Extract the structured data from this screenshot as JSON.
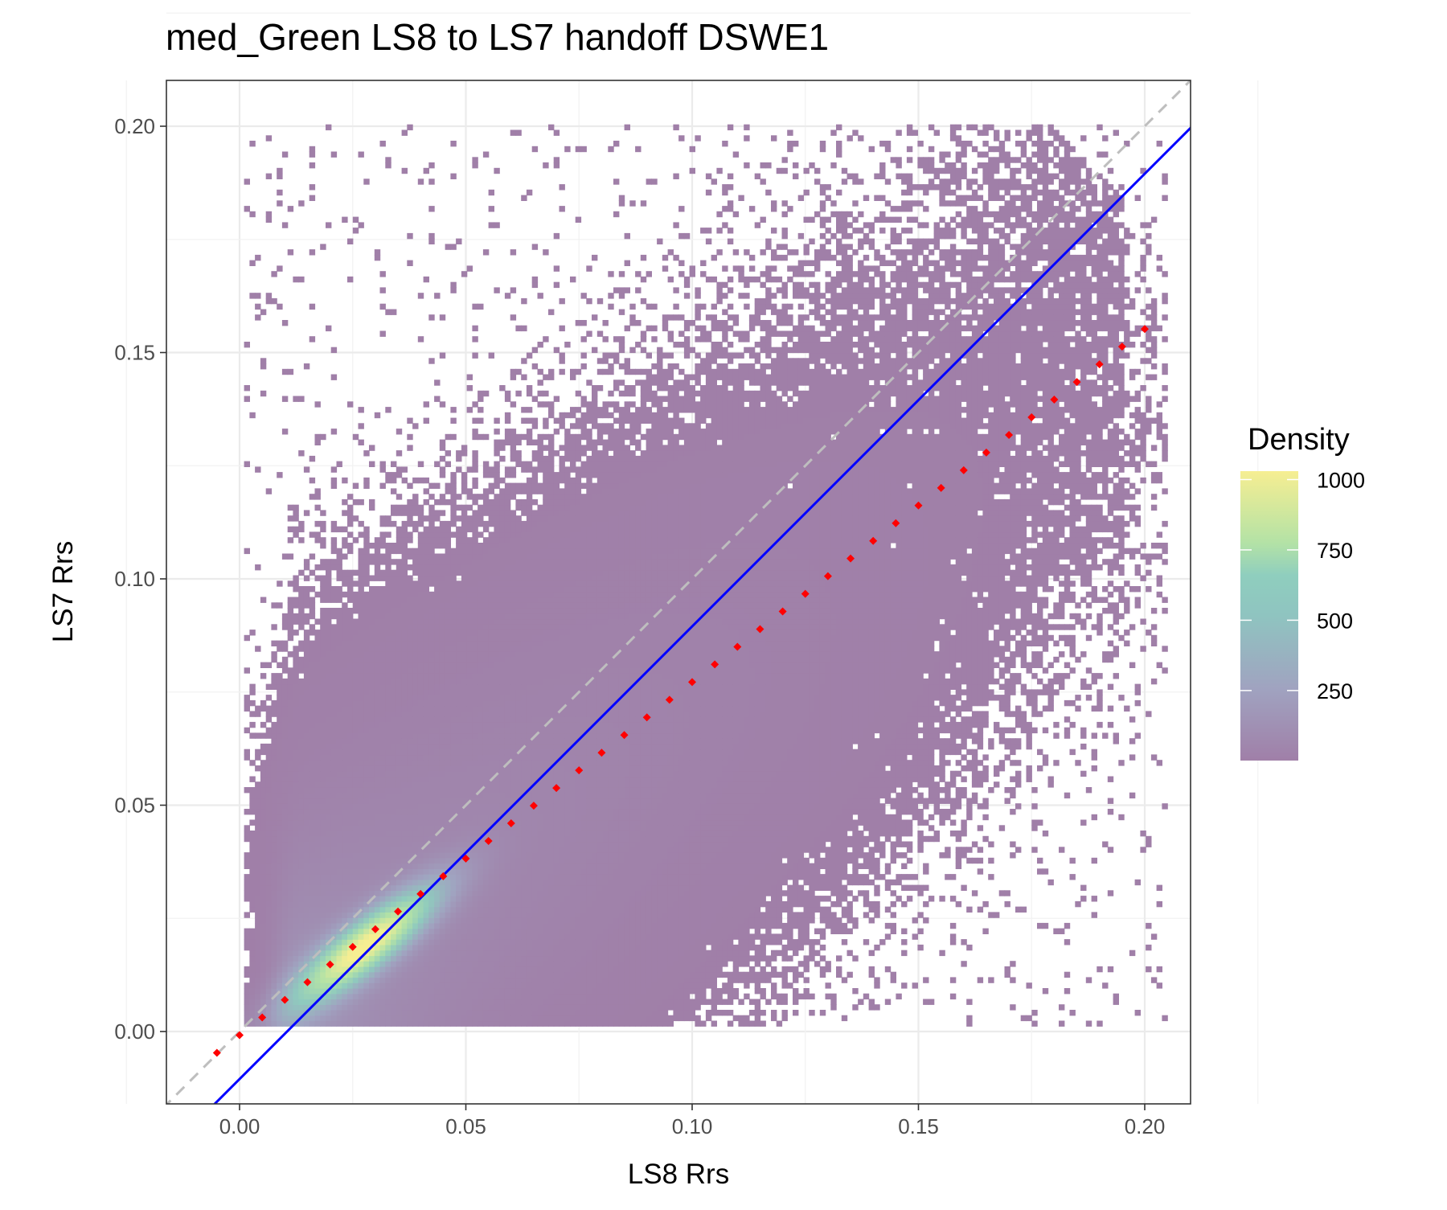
{
  "chart_data": {
    "type": "heatmap",
    "title": "med_Green LS8 to LS7 handoff DSWE1",
    "xlabel": "LS8 Rrs",
    "ylabel": "LS7 Rrs",
    "xlim": [
      -0.016,
      0.21
    ],
    "ylim": [
      -0.016,
      0.21
    ],
    "xticks": [
      0.0,
      0.05,
      0.1,
      0.15,
      0.2
    ],
    "xtick_labels": [
      "0.00",
      "0.05",
      "0.10",
      "0.15",
      "0.20"
    ],
    "yticks": [
      0.0,
      0.05,
      0.1,
      0.15,
      0.2
    ],
    "ytick_labels": [
      "0.00",
      "0.05",
      "0.10",
      "0.15",
      "0.20"
    ],
    "grid": true,
    "density_legend": {
      "title": "Density",
      "ticks": [
        1000,
        750,
        500,
        250
      ],
      "tick_labels": [
        "1000",
        "750",
        "500",
        "250"
      ],
      "range": [
        1,
        1030
      ],
      "placement": "right",
      "colors": [
        "#a07fa8",
        "#a0a3c0",
        "#8fcabe",
        "#b3e2a6",
        "#f6ee92"
      ]
    },
    "density_peak": {
      "x": 0.028,
      "y": 0.019,
      "value": 1000
    },
    "reference_line": {
      "name": "1:1",
      "slope": 1,
      "intercept": 0,
      "color": "#bebebe",
      "style": "dashed"
    },
    "fit_line": {
      "name": "regression",
      "slope": 1.0,
      "intercept": -0.0105,
      "color": "#0000ff"
    },
    "handoff_points": {
      "color": "#ff0000",
      "x": [
        -0.005,
        0,
        0.005,
        0.01,
        0.015,
        0.02,
        0.025,
        0.03,
        0.035,
        0.04,
        0.045,
        0.05,
        0.055,
        0.06,
        0.065,
        0.07,
        0.075,
        0.08,
        0.085,
        0.09,
        0.095,
        0.1,
        0.105,
        0.11,
        0.115,
        0.12,
        0.125,
        0.13,
        0.135,
        0.14,
        0.145,
        0.15,
        0.155,
        0.16,
        0.165,
        0.17,
        0.175,
        0.18,
        0.185,
        0.19,
        0.195,
        0.2
      ],
      "y": [
        -0.0047,
        -0.0008,
        0.0031,
        0.007,
        0.0109,
        0.0148,
        0.0187,
        0.0226,
        0.0265,
        0.0304,
        0.0343,
        0.0382,
        0.0421,
        0.046,
        0.0499,
        0.0538,
        0.0577,
        0.0616,
        0.0655,
        0.0694,
        0.0733,
        0.0772,
        0.0811,
        0.085,
        0.0889,
        0.0928,
        0.0967,
        0.1006,
        0.1045,
        0.1084,
        0.1123,
        0.1162,
        0.1201,
        0.124,
        0.1279,
        0.1318,
        0.1357,
        0.1396,
        0.1435,
        0.1474,
        0.1513,
        0.1552
      ]
    }
  }
}
